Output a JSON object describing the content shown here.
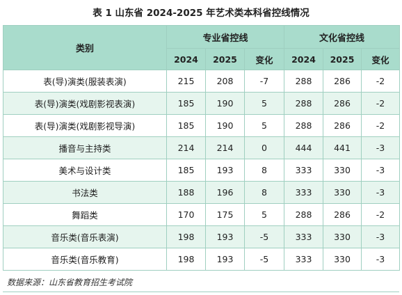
{
  "title": "表 1  山东省 2024-2025 年艺术类本科省控线情况",
  "header": {
    "category": "类别",
    "group_major": "专业省控线",
    "group_culture": "文化省控线",
    "y2024": "2024",
    "y2025": "2025",
    "change": "变化"
  },
  "rows": [
    {
      "name": "表(导)演类(服装表演)",
      "m2024": "215",
      "m2025": "208",
      "mchg": "-7",
      "c2024": "288",
      "c2025": "286",
      "cchg": "-2"
    },
    {
      "name": "表(导)演类(戏剧影视表演)",
      "m2024": "185",
      "m2025": "190",
      "mchg": "5",
      "c2024": "288",
      "c2025": "286",
      "cchg": "-2"
    },
    {
      "name": "表(导)演类(戏剧影视导演)",
      "m2024": "185",
      "m2025": "190",
      "mchg": "5",
      "c2024": "288",
      "c2025": "286",
      "cchg": "-2"
    },
    {
      "name": "播音与主持类",
      "m2024": "214",
      "m2025": "214",
      "mchg": "0",
      "c2024": "444",
      "c2025": "441",
      "cchg": "-3"
    },
    {
      "name": "美术与设计类",
      "m2024": "185",
      "m2025": "193",
      "mchg": "8",
      "c2024": "333",
      "c2025": "330",
      "cchg": "-3"
    },
    {
      "name": "书法类",
      "m2024": "188",
      "m2025": "196",
      "mchg": "8",
      "c2024": "333",
      "c2025": "330",
      "cchg": "-3"
    },
    {
      "name": "舞蹈类",
      "m2024": "170",
      "m2025": "175",
      "mchg": "5",
      "c2024": "288",
      "c2025": "286",
      "cchg": "-2"
    },
    {
      "name": "音乐类(音乐表演)",
      "m2024": "198",
      "m2025": "193",
      "mchg": "-5",
      "c2024": "333",
      "c2025": "330",
      "cchg": "-3"
    },
    {
      "name": "音乐类(音乐教育)",
      "m2024": "198",
      "m2025": "193",
      "mchg": "-5",
      "c2024": "333",
      "c2025": "330",
      "cchg": "-3"
    }
  ],
  "source": "数据来源：山东省教育招生考试院"
}
